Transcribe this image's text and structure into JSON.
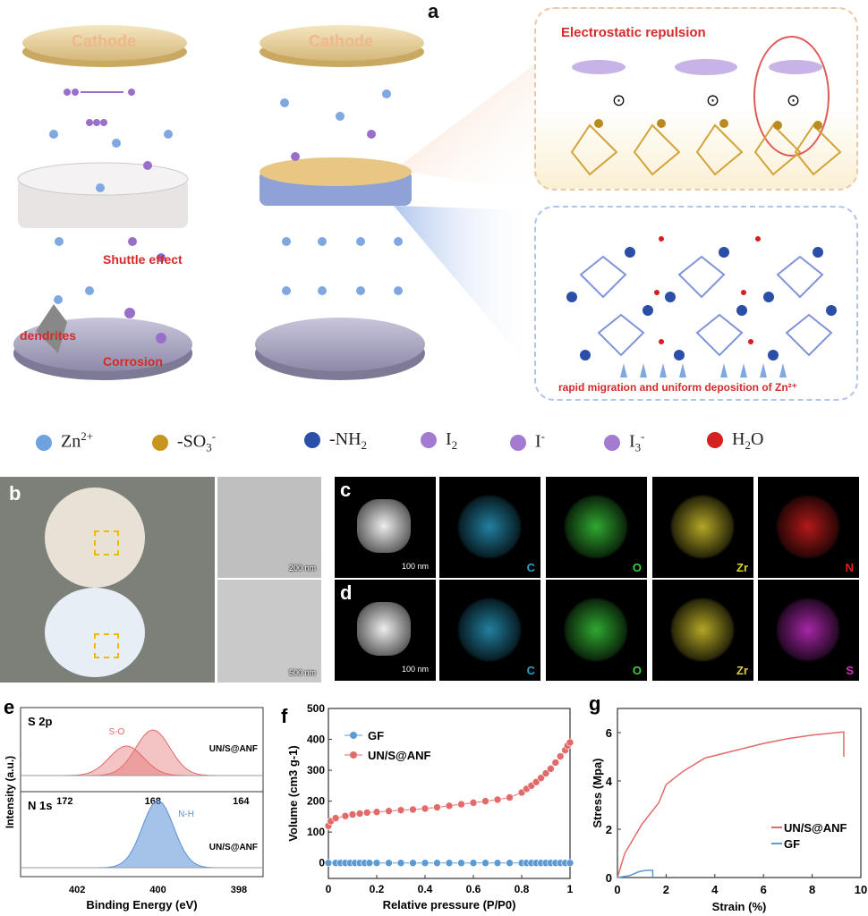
{
  "panel_labels": {
    "a": "a",
    "b": "b",
    "c": "c",
    "d": "d",
    "e": "e",
    "f": "f",
    "g": "g"
  },
  "schematic": {
    "cathode_left": "Cathode",
    "cathode_right": "Cathode",
    "shuttle": "Shuttle effect",
    "dendrites": "dendrites",
    "corrosion": "Corrosion",
    "electrostatic": "Electrostatic repulsion",
    "migration": "rapid migration and uniform deposition of Zn²⁺"
  },
  "legend": [
    {
      "label": "Zn",
      "sup": "2+",
      "sub": "",
      "icon": "zn-ion-icon",
      "color": "#6fa3e0"
    },
    {
      "label": "-SO",
      "sub": "3",
      "sup": "-",
      "icon": "sulfonate-icon",
      "color": "#c8961e"
    },
    {
      "label": "-NH",
      "sub": "2",
      "sup": "",
      "icon": "amine-icon",
      "color": "#2b4fa8"
    },
    {
      "label": "I",
      "sub": "2",
      "sup": "",
      "icon": "iodine-icon",
      "color": "#a37bd0"
    },
    {
      "label": "I",
      "sub": "",
      "sup": "-",
      "icon": "iodide-icon",
      "color": "#a37bd0"
    },
    {
      "label": "I",
      "sub": "3",
      "sup": "-",
      "icon": "triiodide-icon",
      "color": "#a37bd0"
    },
    {
      "label": "H",
      "sub": "2",
      "sup": "",
      "tail": "O",
      "icon": "water-icon",
      "color": "#d42020"
    }
  ],
  "tem": {
    "scale_top": "200 nm",
    "scale_bottom": "500 nm"
  },
  "mapping": {
    "row_c": {
      "scale": "100 nm",
      "elements": [
        {
          "name": "C",
          "color": "#2aa0c8"
        },
        {
          "name": "O",
          "color": "#3cd23c"
        },
        {
          "name": "Zr",
          "color": "#e0d030"
        },
        {
          "name": "N",
          "color": "#e02020"
        }
      ]
    },
    "row_d": {
      "scale": "100 nm",
      "elements": [
        {
          "name": "C",
          "color": "#2aa0c8"
        },
        {
          "name": "O",
          "color": "#3cd23c"
        },
        {
          "name": "Zr",
          "color": "#e0d030"
        },
        {
          "name": "S",
          "color": "#d030d0"
        }
      ]
    }
  },
  "chart_data": [
    {
      "type": "line",
      "panel": "e",
      "ylabel": "Intensity (a.u.)",
      "xlabel": "Binding Energy (eV)",
      "subplots": [
        {
          "title": "S 2p",
          "sample": "UN/S@ANF",
          "annotation": "S-O",
          "xticks": [
            172,
            168,
            164
          ],
          "xlim": [
            174,
            163
          ],
          "peaks_eV": [
            169.2,
            168.0
          ],
          "color": "#e36a6a"
        },
        {
          "title": "N 1s",
          "sample": "UN/S@ANF",
          "annotation": "N-H",
          "xticks": [
            402,
            400,
            398
          ],
          "xlim": [
            403.4,
            397.4
          ],
          "peaks_eV": [
            400.0
          ],
          "color": "#5b8fd6"
        }
      ]
    },
    {
      "type": "scatter",
      "panel": "f",
      "xlabel": "Relative pressure (P/P0)",
      "ylabel": "Volume (cm3 g-1)",
      "xlim": [
        0,
        1
      ],
      "ylim": [
        -50,
        500
      ],
      "xticks": [
        0.0,
        0.2,
        0.4,
        0.6,
        0.8,
        1.0
      ],
      "yticks": [
        0,
        100,
        200,
        300,
        400,
        500
      ],
      "legend": "top-left",
      "series": [
        {
          "name": "GF",
          "color": "#5b9bd5",
          "x": [
            0.0,
            0.03,
            0.05,
            0.07,
            0.09,
            0.11,
            0.13,
            0.15,
            0.17,
            0.2,
            0.25,
            0.3,
            0.35,
            0.4,
            0.45,
            0.5,
            0.55,
            0.6,
            0.65,
            0.7,
            0.75,
            0.8,
            0.82,
            0.84,
            0.86,
            0.88,
            0.9,
            0.92,
            0.94,
            0.96,
            0.98,
            1.0
          ],
          "y": [
            0,
            0,
            0,
            0,
            0,
            0,
            0,
            0,
            0,
            0,
            0,
            0,
            0,
            0,
            0,
            0,
            0,
            0,
            0,
            0,
            0,
            0,
            0,
            0,
            0,
            0,
            0,
            0,
            0,
            0,
            0,
            0
          ]
        },
        {
          "name": "UN/S@ANF",
          "color": "#e36a6a",
          "x": [
            0.0,
            0.01,
            0.03,
            0.07,
            0.1,
            0.13,
            0.16,
            0.2,
            0.25,
            0.3,
            0.35,
            0.4,
            0.45,
            0.5,
            0.55,
            0.6,
            0.65,
            0.7,
            0.75,
            0.8,
            0.82,
            0.84,
            0.86,
            0.88,
            0.9,
            0.92,
            0.94,
            0.96,
            0.98,
            0.99,
            1.0
          ],
          "y": [
            120,
            135,
            145,
            152,
            157,
            160,
            163,
            165,
            168,
            171,
            173,
            176,
            180,
            185,
            190,
            195,
            200,
            205,
            212,
            228,
            240,
            250,
            262,
            275,
            290,
            305,
            325,
            345,
            365,
            380,
            390
          ]
        }
      ]
    },
    {
      "type": "line",
      "panel": "g",
      "xlabel": "Strain (%)",
      "ylabel": "Stress (Mpa)",
      "xlim": [
        0,
        10
      ],
      "ylim": [
        0,
        7
      ],
      "xticks": [
        0,
        2,
        4,
        6,
        8,
        10
      ],
      "yticks": [
        0,
        2,
        4,
        6
      ],
      "legend": "bottom-right",
      "series": [
        {
          "name": "UN/S@ANF",
          "color": "#e36a6a",
          "x": [
            0,
            0.3,
            1,
            1.7,
            2,
            2.7,
            3.6,
            5,
            6,
            7,
            8,
            9,
            9.3,
            9.3
          ],
          "y": [
            0,
            1,
            2.2,
            3.1,
            3.85,
            4.4,
            4.95,
            5.3,
            5.55,
            5.75,
            5.9,
            6.0,
            6.03,
            5.0
          ]
        },
        {
          "name": "GF",
          "color": "#5b9bd5",
          "x": [
            0,
            0.5,
            0.9,
            1.2,
            1.45,
            1.45
          ],
          "y": [
            0,
            0.08,
            0.25,
            0.3,
            0.3,
            0
          ]
        }
      ]
    }
  ]
}
